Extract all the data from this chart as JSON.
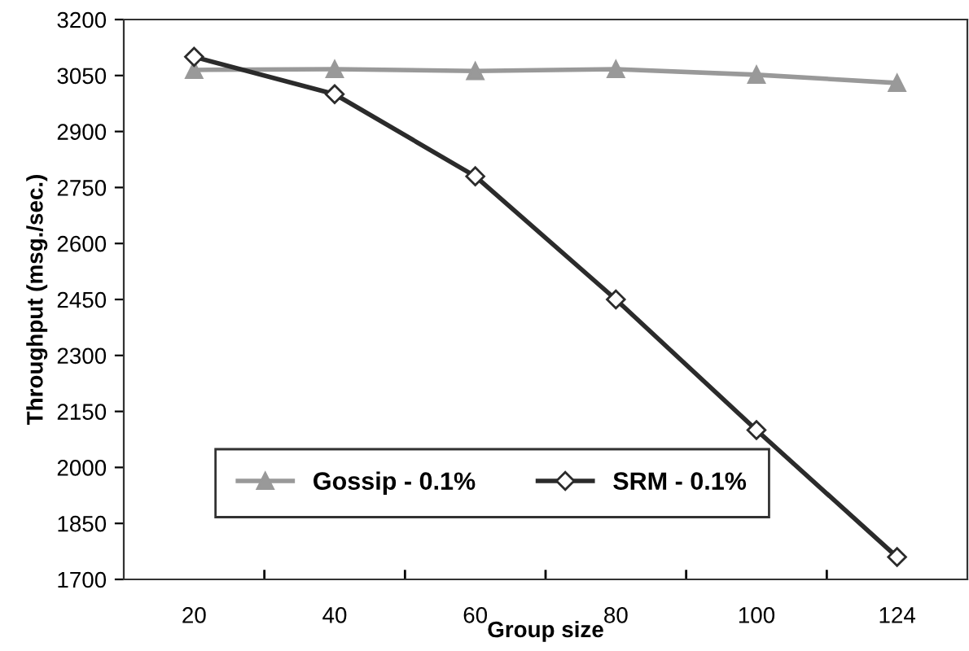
{
  "chart_data": {
    "type": "line",
    "xlabel": "Group size",
    "ylabel": "Throughput (msg./sec.)",
    "categories": [
      "20",
      "40",
      "60",
      "80",
      "100",
      "124"
    ],
    "ylim": [
      1700,
      3200
    ],
    "yticks": [
      1700,
      1850,
      2000,
      2150,
      2300,
      2450,
      2600,
      2750,
      2900,
      3050,
      3200
    ],
    "grid": false,
    "legend": "bottom left",
    "series": [
      {
        "name": "Gossip - 0.1%",
        "color": "#999999",
        "marker": "triangle",
        "values": [
          3065,
          3067,
          3062,
          3067,
          3052,
          3030
        ]
      },
      {
        "name": "SRM - 0.1%",
        "color": "#2b2b2b",
        "marker": "diamond",
        "values": [
          3100,
          3000,
          2780,
          2450,
          2100,
          1760
        ]
      }
    ]
  }
}
